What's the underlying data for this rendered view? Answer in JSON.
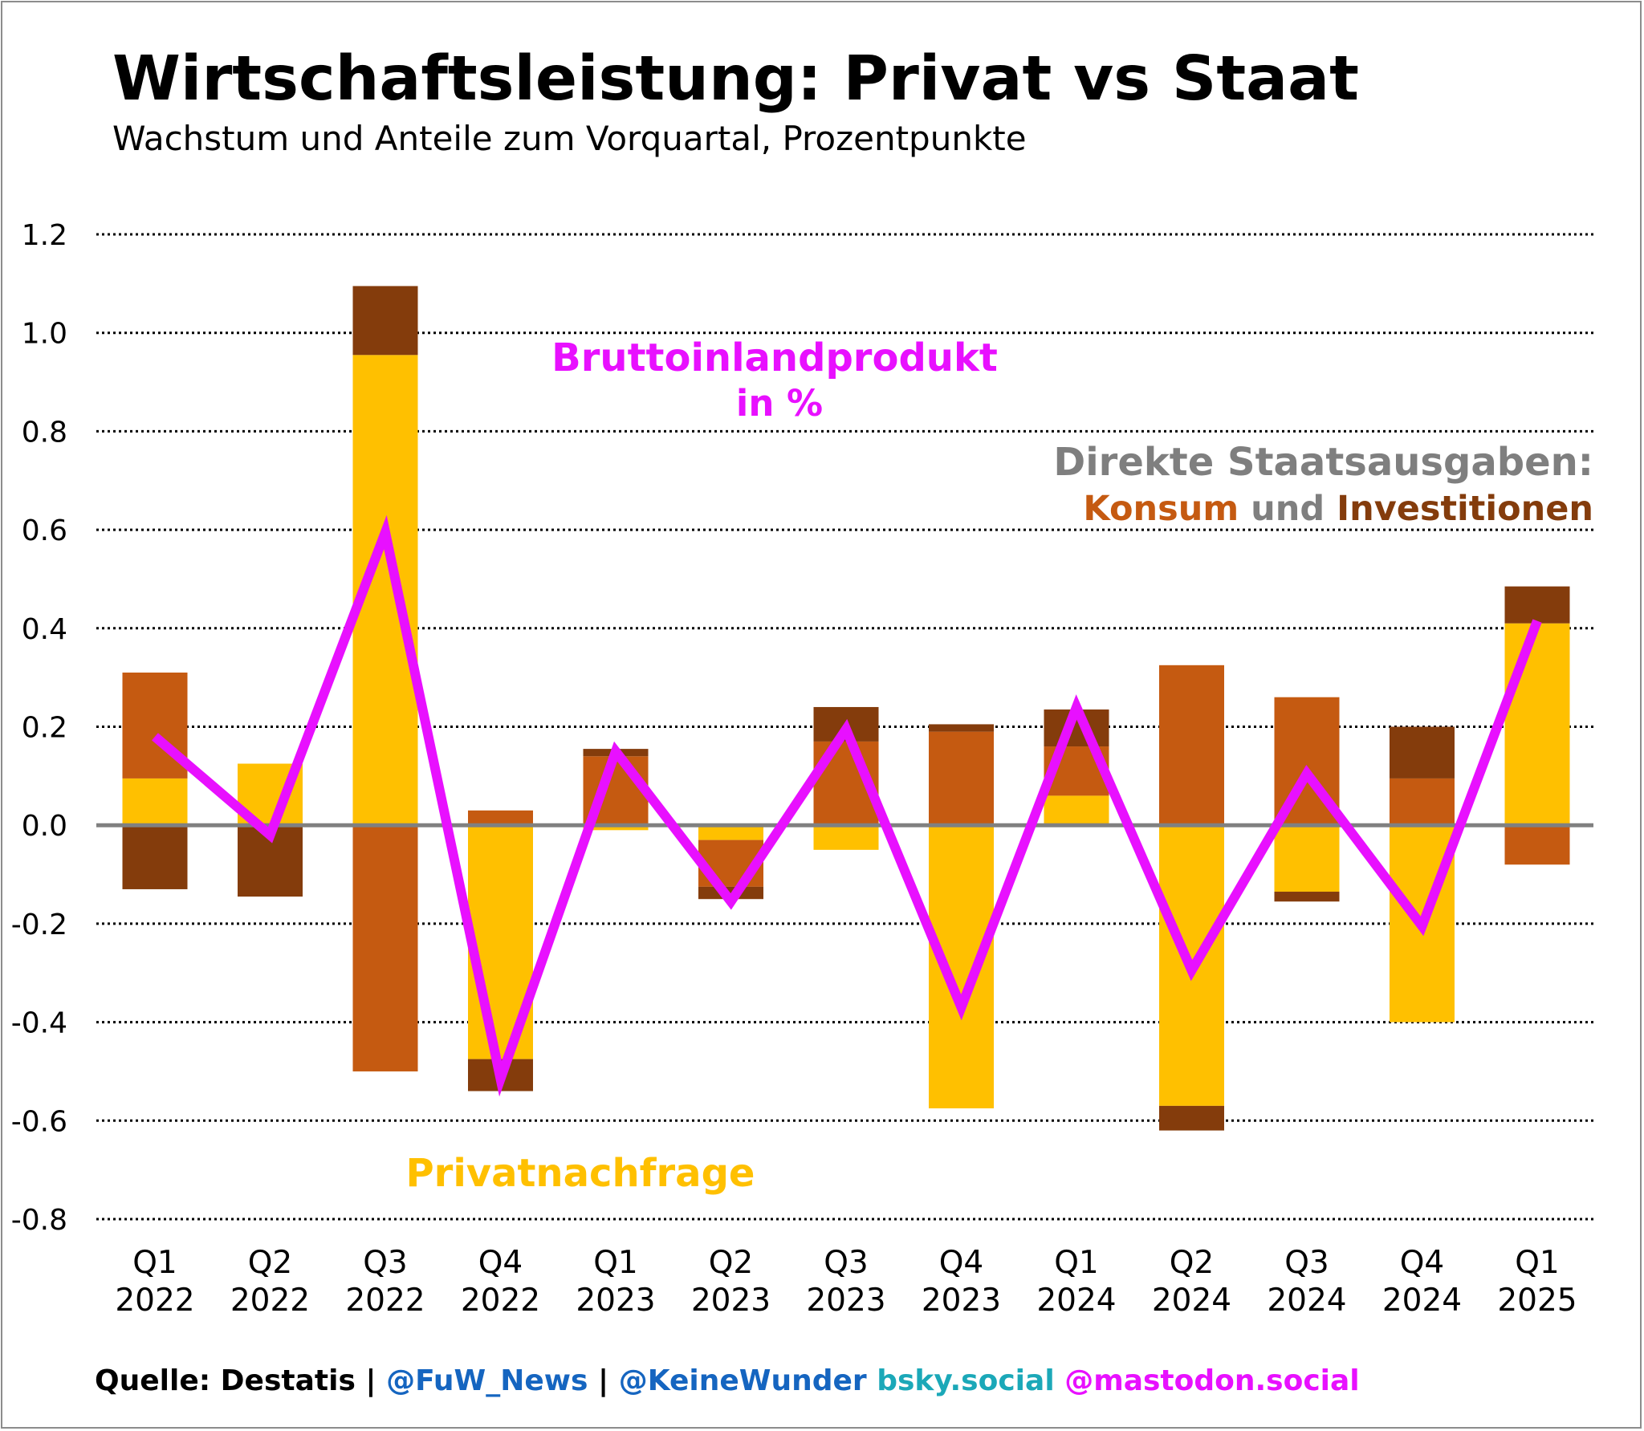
{
  "colors": {
    "private": "#FFC000",
    "consumption": "#C55A11",
    "investment": "#843C0C",
    "gdp": "#E810FF",
    "zero_line": "#808080",
    "gray_text": "#7F7F7F",
    "source": "#000000",
    "fuw": "#1565C0",
    "bsky": "#1BA8B8",
    "mastodon": "#E810FF"
  },
  "chart_data": {
    "type": "bar",
    "stacked": true,
    "title": "Wirtschaftsleistung: Privat vs Staat",
    "subtitle": "Wachstum und Anteile zum Vorquartal, Prozentpunkte",
    "ylim": [
      -0.8,
      1.2
    ],
    "yticks": [
      1.2,
      1.0,
      0.8,
      0.6,
      0.4,
      0.2,
      0.0,
      -0.2,
      -0.4,
      -0.6,
      -0.8
    ],
    "ytick_labels": [
      "1.2",
      "1.0",
      "0.8",
      "0.6",
      "0.4",
      "0.2",
      "0.0",
      "-0.2",
      "-0.4",
      "-0.6",
      "-0.8"
    ],
    "categories": [
      {
        "q": "Q1",
        "y": "2022"
      },
      {
        "q": "Q2",
        "y": "2022"
      },
      {
        "q": "Q3",
        "y": "2022"
      },
      {
        "q": "Q4",
        "y": "2022"
      },
      {
        "q": "Q1",
        "y": "2023"
      },
      {
        "q": "Q2",
        "y": "2023"
      },
      {
        "q": "Q3",
        "y": "2023"
      },
      {
        "q": "Q4",
        "y": "2023"
      },
      {
        "q": "Q1",
        "y": "2024"
      },
      {
        "q": "Q2",
        "y": "2024"
      },
      {
        "q": "Q3",
        "y": "2024"
      },
      {
        "q": "Q4",
        "y": "2024"
      },
      {
        "q": "Q1",
        "y": "2025"
      }
    ],
    "series": [
      {
        "name": "Privatnachfrage",
        "color_key": "private",
        "values": [
          0.095,
          0.125,
          0.955,
          -0.475,
          -0.01,
          -0.03,
          -0.05,
          -0.575,
          0.06,
          -0.57,
          -0.135,
          -0.4,
          0.41
        ]
      },
      {
        "name": "Konsum",
        "color_key": "consumption",
        "values": [
          0.215,
          0.0,
          -0.5,
          0.03,
          0.14,
          -0.095,
          0.17,
          0.19,
          0.1,
          0.325,
          0.26,
          0.095,
          -0.08
        ]
      },
      {
        "name": "Investitionen",
        "color_key": "investment",
        "values": [
          -0.13,
          -0.145,
          0.14,
          -0.065,
          0.015,
          -0.025,
          0.07,
          0.015,
          0.075,
          -0.05,
          -0.02,
          0.105,
          0.075
        ]
      }
    ],
    "line": {
      "name": "Bruttoinlandprodukt",
      "color_key": "gdp",
      "values": [
        0.18,
        -0.02,
        0.595,
        -0.515,
        0.15,
        -0.155,
        0.195,
        -0.37,
        0.24,
        -0.295,
        0.105,
        -0.205,
        0.415
      ]
    },
    "annotations": {
      "gdp_line1": "Bruttoinlandprodukt",
      "gdp_line2": "in %",
      "state_line1": "Direkte Staatsausgaben:",
      "state_konsum": "Konsum",
      "state_und": " und ",
      "state_invest": "Investitionen",
      "private": "Privatnachfrage"
    }
  },
  "footer": {
    "source": "Quelle: Destatis | ",
    "fuw": "@FuW_News",
    "sep": " | ",
    "keine": "@KeineWunder",
    "bsky": " bsky.social",
    "mastodon": " @mastodon.social"
  }
}
